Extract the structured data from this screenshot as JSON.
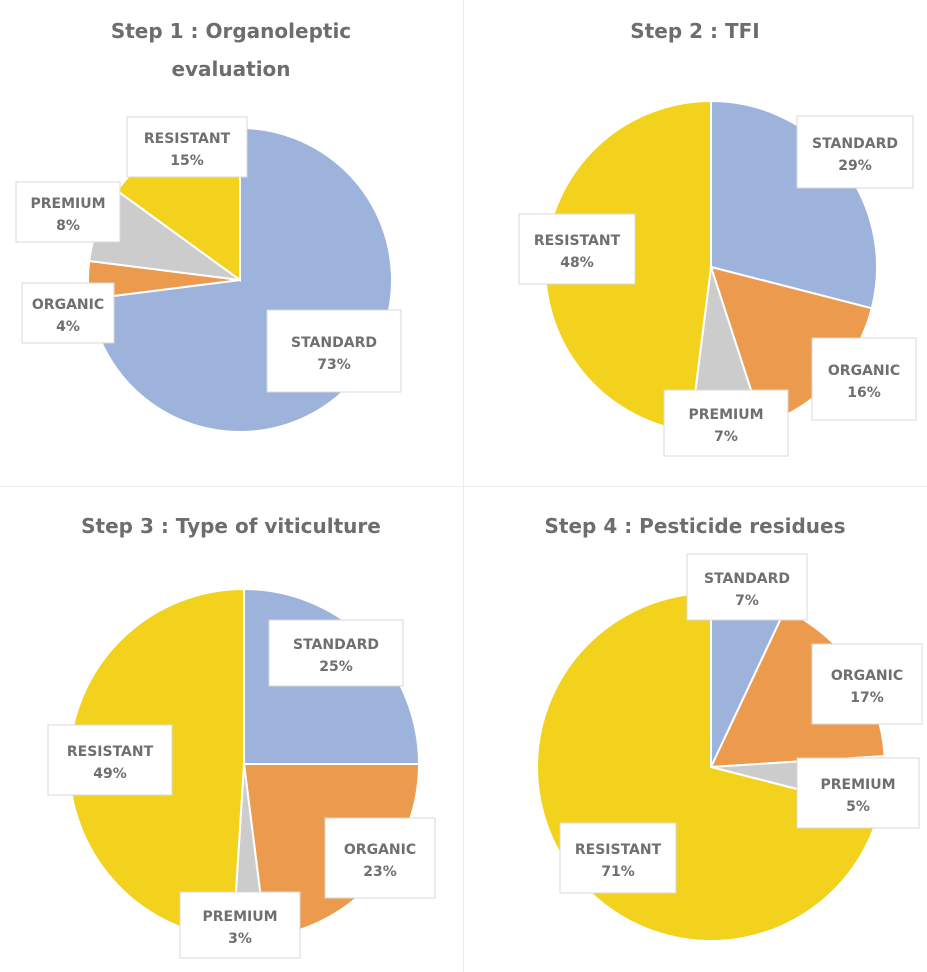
{
  "colors": {
    "STANDARD": "#9db3dc",
    "ORGANIC": "#ec9a4e",
    "PREMIUM": "#cccccc",
    "RESISTANT": "#f2d21d"
  },
  "chart_data": [
    {
      "type": "pie",
      "title": [
        "Step 1 : Organoleptic",
        "evaluation"
      ],
      "slices": [
        {
          "name": "STANDARD",
          "value": 73,
          "label": "73%"
        },
        {
          "name": "ORGANIC",
          "value": 4,
          "label": "4%"
        },
        {
          "name": "PREMIUM",
          "value": 8,
          "label": "8%"
        },
        {
          "name": "RESISTANT",
          "value": 15,
          "label": "15%"
        }
      ]
    },
    {
      "type": "pie",
      "title": [
        "Step 2 : TFI"
      ],
      "slices": [
        {
          "name": "STANDARD",
          "value": 29,
          "label": "29%"
        },
        {
          "name": "ORGANIC",
          "value": 16,
          "label": "16%"
        },
        {
          "name": "PREMIUM",
          "value": 7,
          "label": "7%"
        },
        {
          "name": "RESISTANT",
          "value": 48,
          "label": "48%"
        }
      ]
    },
    {
      "type": "pie",
      "title": [
        "Step 3 : Type of viticulture"
      ],
      "slices": [
        {
          "name": "STANDARD",
          "value": 25,
          "label": "25%"
        },
        {
          "name": "ORGANIC",
          "value": 23,
          "label": "23%"
        },
        {
          "name": "PREMIUM",
          "value": 3,
          "label": "3%"
        },
        {
          "name": "RESISTANT",
          "value": 49,
          "label": "49%"
        }
      ]
    },
    {
      "type": "pie",
      "title": [
        "Step 4 : Pesticide residues"
      ],
      "slices": [
        {
          "name": "STANDARD",
          "value": 7,
          "label": "7%"
        },
        {
          "name": "ORGANIC",
          "value": 17,
          "label": "17%"
        },
        {
          "name": "PREMIUM",
          "value": 5,
          "label": "5%"
        },
        {
          "name": "RESISTANT",
          "value": 71,
          "label": "71%"
        }
      ]
    }
  ]
}
